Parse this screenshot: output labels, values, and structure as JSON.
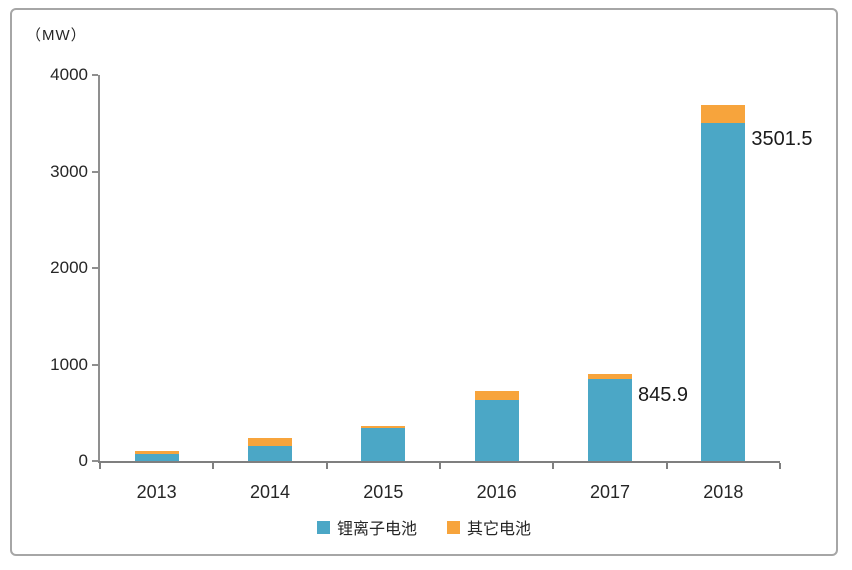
{
  "chart_data": {
    "type": "bar",
    "stacked": true,
    "title": "",
    "unit_label": "（MW）",
    "xlabel": "",
    "ylabel": "MW",
    "categories": [
      "2013",
      "2014",
      "2015",
      "2016",
      "2017",
      "2018"
    ],
    "series": [
      {
        "name": "锂离子电池",
        "color": "#4BA7C6",
        "values": [
          75,
          155,
          340,
          630,
          845.9,
          3501.5
        ]
      },
      {
        "name": "其它电池",
        "color": "#F7A43C",
        "values": [
          30,
          80,
          25,
          100,
          60,
          185
        ]
      }
    ],
    "annotations": [
      {
        "category_index": 4,
        "series_index": 0,
        "text": "845.9"
      },
      {
        "category_index": 5,
        "series_index": 0,
        "text": "3501.5"
      }
    ],
    "ylim": [
      0,
      4000
    ],
    "yticks": [
      0,
      1000,
      2000,
      3000,
      4000
    ],
    "grid": false,
    "legend_position": "bottom"
  },
  "colors": {
    "axis": "#8f8f8f",
    "text": "#262626",
    "frame_border": "#a6a6a6",
    "background": "#ffffff"
  }
}
